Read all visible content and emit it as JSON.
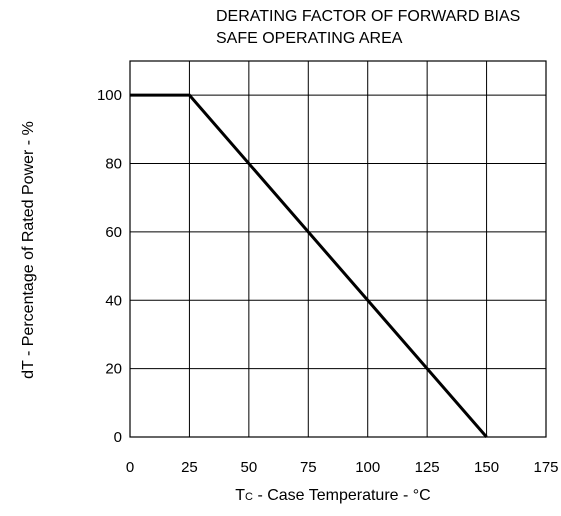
{
  "chart_data": {
    "type": "line",
    "title_line1": "DERATING FACTOR OF FORWARD BIAS",
    "title_line2": "SAFE OPERATING AREA",
    "xlabel_main": "T",
    "xlabel_sub": "C",
    "xlabel_rest": " - Case Temperature - °C",
    "ylabel": "dT - Percentage of Rated Power - %",
    "xlim": [
      0,
      175
    ],
    "ylim": [
      0,
      110
    ],
    "xticks": [
      0,
      25,
      50,
      75,
      100,
      125,
      150,
      175
    ],
    "yticks": [
      0,
      20,
      40,
      60,
      80,
      100
    ],
    "grid": true,
    "series": [
      {
        "x": [
          0,
          25,
          150
        ],
        "y": [
          100,
          100,
          0
        ]
      }
    ]
  }
}
